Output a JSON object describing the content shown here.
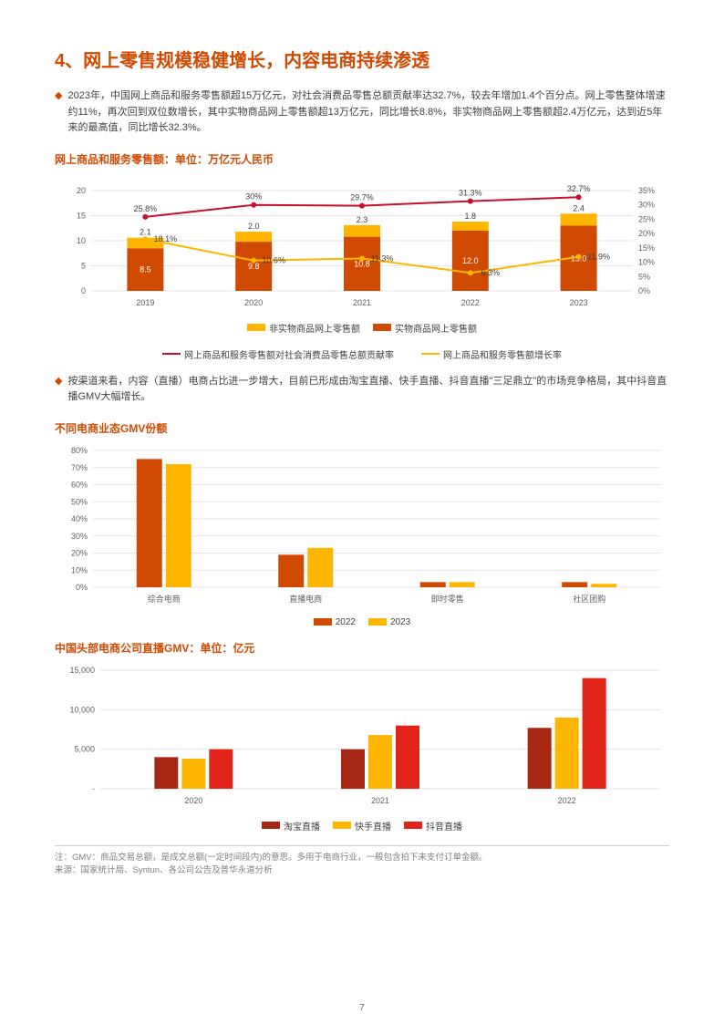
{
  "title": "4、网上零售规模稳健增长，内容电商持续渗透",
  "bullet1": "2023年，中国网上商品和服务零售额超15万亿元，对社会消费品零售总额贡献率达32.7%，较去年增加1.4个百分点。网上零售整体增速约11%，再次回到双位数增长，其中实物商品网上零售额超13万亿元，同比增长8.8%，非实物商品网上零售额超2.4万亿元，达到近5年来的最高值，同比增长32.3%。",
  "bullet2": "按渠道来看，内容（直播）电商占比进一步增大，目前已形成由淘宝直播、快手直播、抖音直播\"三足鼎立\"的市场竞争格局，其中抖音直播GMV大幅增长。",
  "chart1": {
    "title": "网上商品和服务零售额：单位：万亿元人民币",
    "type": "bar+line",
    "years": [
      "2019",
      "2020",
      "2021",
      "2022",
      "2023"
    ],
    "physical": [
      8.5,
      9.8,
      10.8,
      12.0,
      13.0
    ],
    "nonphysical": [
      2.1,
      2.0,
      2.3,
      1.8,
      2.4
    ],
    "contrib_pct": [
      25.8,
      30.0,
      29.7,
      31.3,
      32.7
    ],
    "growth_pct": [
      18.1,
      10.6,
      11.3,
      6.3,
      11.9
    ],
    "left_ylim": [
      0,
      20
    ],
    "left_step": 5,
    "right_ylim": [
      0,
      35
    ],
    "right_step": 5,
    "colors": {
      "physical": "#d04a02",
      "nonphysical": "#ffb600",
      "contrib": "#c8102e",
      "growth": "#ffb600",
      "grid": "#e5e5e5"
    },
    "legend": {
      "nonphysical": "非实物商品网上零售额",
      "physical": "实物商品网上零售额",
      "contrib": "网上商品和服务零售额对社会消费品零售总额贡献率",
      "growth": "网上商品和服务零售额增长率"
    }
  },
  "chart2": {
    "title": "不同电商业态GMV份额",
    "type": "bar",
    "categories": [
      "综合电商",
      "直播电商",
      "即时零售",
      "社区团购"
    ],
    "y2022": [
      75,
      19,
      3,
      3
    ],
    "y2023": [
      72,
      23,
      3,
      2
    ],
    "ylim": [
      0,
      80
    ],
    "ystep": 10,
    "colors": {
      "y2022": "#d04a02",
      "y2023": "#ffb600",
      "grid": "#e5e5e5"
    },
    "legend": {
      "a": "2022",
      "b": "2023"
    }
  },
  "chart3": {
    "title": "中国头部电商公司直播GMV：单位：亿元",
    "type": "bar",
    "years": [
      "2020",
      "2021",
      "2022"
    ],
    "taobao": [
      4000,
      5000,
      7700
    ],
    "kuaishou": [
      3800,
      6800,
      9000
    ],
    "douyin": [
      5000,
      8000,
      14000
    ],
    "ylim": [
      0,
      15000
    ],
    "ystep": 5000,
    "colors": {
      "taobao": "#a52714",
      "kuaishou": "#ffb600",
      "douyin": "#e2231a",
      "grid": "#e5e5e5"
    },
    "legend": {
      "taobao": "淘宝直播",
      "kuaishou": "快手直播",
      "douyin": "抖音直播"
    }
  },
  "footnote1": "注：GMV：商品交易总额，是成交总额(一定时间段内)的意思。多用于电商行业，一般包含拍下未支付订单金额。",
  "footnote2": "来源：国家统计局、Syntun、各公司公告及普华永道分析",
  "pagenum": "7"
}
